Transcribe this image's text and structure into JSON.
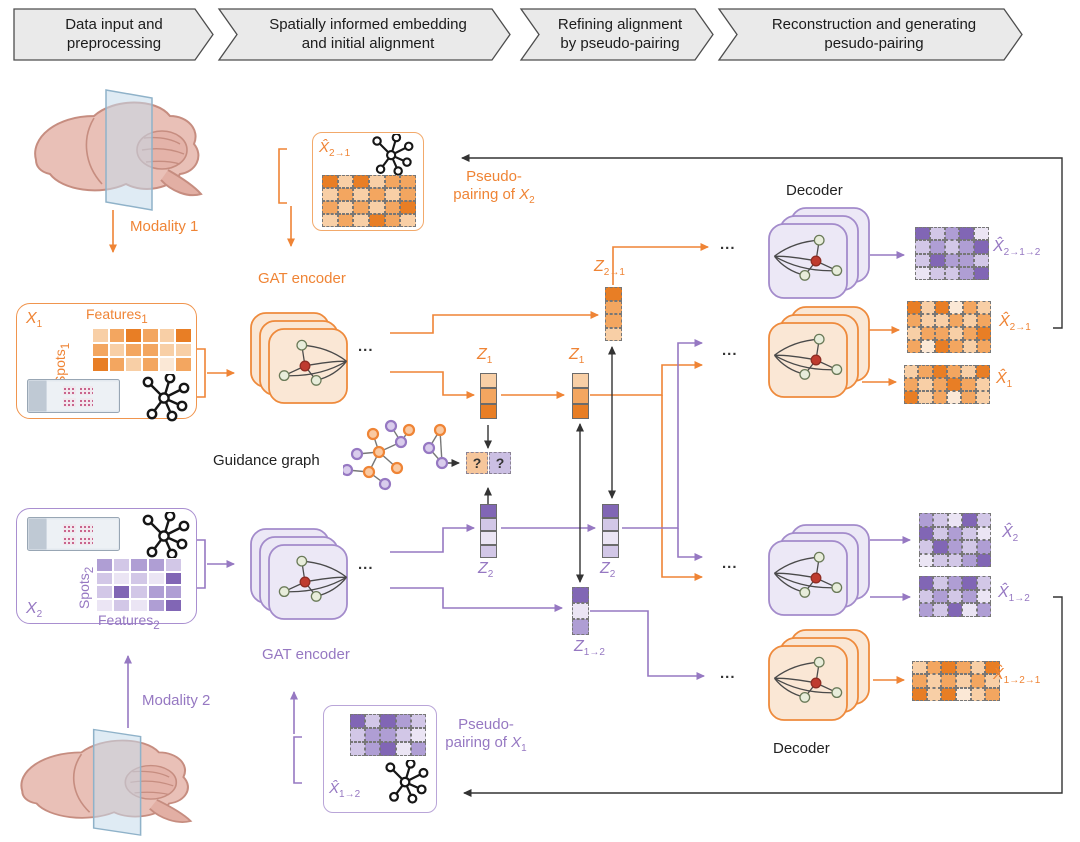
{
  "colors": {
    "orange": "#EF8435",
    "purple": "#9678C2",
    "black": "#222222",
    "banner_fill": "#EAEAEA",
    "banner_stroke": "#4D4D4D",
    "orange_levels": [
      "#E87E25",
      "#F3A660",
      "#F8CFA6",
      "#FBE8D6"
    ],
    "purple_levels": [
      "#8166B5",
      "#AF9ED4",
      "#D2C7E7",
      "#EBE5F4"
    ]
  },
  "banner": {
    "stages": [
      {
        "line1": "Data input and",
        "line2": "preprocessing"
      },
      {
        "line1": "Spatially informed embedding",
        "line2": "and initial alignment"
      },
      {
        "line1": "Refining alignment",
        "line2": "by pseudo-pairing"
      },
      {
        "line1": "Reconstruction and generating",
        "line2": "pesudo-pairing"
      }
    ]
  },
  "left": {
    "modality1": "Modality 1",
    "modality2": "Modality 2",
    "x1_box": {
      "var": "X",
      "sub": "1",
      "rows": "Spots",
      "rows_sub": "1",
      "cols": "Features",
      "cols_sub": "1"
    },
    "x2_box": {
      "var": "X",
      "sub": "2",
      "rows": "Spots",
      "rows_sub": "2",
      "cols": "Features",
      "cols_sub": "2"
    }
  },
  "encoders": {
    "top": "GAT encoder",
    "bottom": "GAT encoder"
  },
  "decoders": {
    "top": "Decoder",
    "bottom": "Decoder"
  },
  "pseudo_top": {
    "l1": "Pseudo-",
    "l2": "pairing of ",
    "var": "X",
    "sub": "2",
    "mat_var": "X̂",
    "mat_sub": "2→1"
  },
  "pseudo_bottom": {
    "l1": "Pseudo-",
    "l2": "pairing of ",
    "var": "X",
    "sub": "1",
    "mat_var": "X̂",
    "mat_sub": "1→2"
  },
  "guidance": {
    "label": "Guidance graph",
    "q1": "?",
    "q2": "?"
  },
  "latents": {
    "z1a": {
      "base": "Z",
      "sub": "1"
    },
    "z1b": {
      "base": "Z",
      "sub": "1"
    },
    "z21": {
      "base": "Z",
      "sub": "2→1"
    },
    "z2a": {
      "base": "Z",
      "sub": "2"
    },
    "z2b": {
      "base": "Z",
      "sub": "2"
    },
    "z12": {
      "base": "Z",
      "sub": "1→2"
    }
  },
  "outputs": {
    "o1": {
      "base": "X̂",
      "sub": "2→1→2"
    },
    "o2": {
      "base": "X̂",
      "sub": "2→1"
    },
    "o3": {
      "base": "X̂",
      "sub": "1"
    },
    "o4": {
      "base": "X̂",
      "sub": "2"
    },
    "o5": {
      "base": "X̂",
      "sub": "1→2"
    },
    "o6": {
      "base": "X̂",
      "sub": "1→2→1"
    }
  },
  "dots": "...",
  "matrices": {
    "m_x1": {
      "rows": 3,
      "cols": 6,
      "palette": "orange_levels",
      "border": "white",
      "cells": [
        [
          2,
          1,
          0,
          1,
          2,
          0
        ],
        [
          1,
          2,
          1,
          1,
          2,
          2
        ],
        [
          0,
          1,
          2,
          1,
          3,
          1
        ]
      ]
    },
    "m_xhat21_top": {
      "rows": 4,
      "cols": 6,
      "palette": "orange_levels",
      "border": "dashed",
      "cells": [
        [
          0,
          2,
          0,
          2,
          1,
          1
        ],
        [
          2,
          1,
          2,
          1,
          2,
          1
        ],
        [
          1,
          2,
          1,
          2,
          1,
          0
        ],
        [
          2,
          1,
          2,
          0,
          1,
          2
        ]
      ]
    },
    "m_x2": {
      "rows": 4,
      "cols": 5,
      "palette": "purple_levels",
      "border": "white",
      "cells": [
        [
          1,
          2,
          1,
          1,
          2
        ],
        [
          2,
          3,
          2,
          3,
          0
        ],
        [
          2,
          0,
          2,
          1,
          1
        ],
        [
          3,
          2,
          3,
          1,
          0
        ]
      ]
    },
    "m_xhat12_bot": {
      "rows": 3,
      "cols": 5,
      "palette": "purple_levels",
      "border": "dashed",
      "cells": [
        [
          0,
          2,
          0,
          1,
          2
        ],
        [
          2,
          1,
          1,
          2,
          3
        ],
        [
          2,
          1,
          0,
          3,
          1
        ]
      ]
    },
    "m_out1": {
      "rows": 4,
      "cols": 5,
      "palette": "purple_levels",
      "border": "dashed",
      "cells": [
        [
          0,
          2,
          1,
          0,
          3
        ],
        [
          2,
          1,
          2,
          1,
          0
        ],
        [
          2,
          0,
          1,
          1,
          2
        ],
        [
          3,
          2,
          2,
          1,
          0
        ]
      ]
    },
    "m_out2": {
      "rows": 4,
      "cols": 6,
      "palette": "orange_levels",
      "border": "dashed",
      "cells": [
        [
          0,
          2,
          0,
          3,
          1,
          2
        ],
        [
          1,
          2,
          2,
          1,
          2,
          1
        ],
        [
          2,
          1,
          1,
          2,
          1,
          0
        ],
        [
          1,
          3,
          0,
          1,
          2,
          1
        ]
      ]
    },
    "m_out3": {
      "rows": 3,
      "cols": 6,
      "palette": "orange_levels",
      "border": "dashed",
      "cells": [
        [
          2,
          1,
          0,
          1,
          2,
          0
        ],
        [
          1,
          2,
          1,
          0,
          1,
          2
        ],
        [
          0,
          2,
          1,
          3,
          1,
          2
        ]
      ]
    },
    "m_out4": {
      "rows": 4,
      "cols": 5,
      "palette": "purple_levels",
      "border": "dashed",
      "cells": [
        [
          1,
          2,
          3,
          0,
          2
        ],
        [
          0,
          2,
          1,
          2,
          3
        ],
        [
          2,
          0,
          1,
          2,
          1
        ],
        [
          3,
          2,
          2,
          1,
          0
        ]
      ]
    },
    "m_out5": {
      "rows": 3,
      "cols": 5,
      "palette": "purple_levels",
      "border": "dashed",
      "cells": [
        [
          0,
          2,
          1,
          0,
          2
        ],
        [
          2,
          1,
          2,
          1,
          3
        ],
        [
          1,
          2,
          0,
          3,
          1
        ]
      ]
    },
    "m_out6": {
      "rows": 3,
      "cols": 6,
      "palette": "orange_levels",
      "border": "dashed",
      "cells": [
        [
          2,
          1,
          0,
          1,
          2,
          0
        ],
        [
          1,
          2,
          1,
          2,
          1,
          2
        ],
        [
          0,
          2,
          0,
          3,
          2,
          1
        ]
      ]
    },
    "v_z1a": {
      "rows": 3,
      "cols": 1,
      "palette": "orange_levels",
      "border": "dark",
      "cells": [
        [
          2
        ],
        [
          1
        ],
        [
          0
        ]
      ]
    },
    "v_z1b": {
      "rows": 3,
      "cols": 1,
      "palette": "orange_levels",
      "border": "dark",
      "cells": [
        [
          2
        ],
        [
          1
        ],
        [
          0
        ]
      ]
    },
    "v_z21": {
      "rows": 4,
      "cols": 1,
      "palette": "orange_levels",
      "border": "dashed",
      "cells": [
        [
          0
        ],
        [
          1
        ],
        [
          1
        ],
        [
          2
        ]
      ]
    },
    "v_z2a": {
      "rows": 4,
      "cols": 1,
      "palette": "purple_levels",
      "border": "dark",
      "cells": [
        [
          0
        ],
        [
          2
        ],
        [
          3
        ],
        [
          2
        ]
      ]
    },
    "v_z2b": {
      "rows": 4,
      "cols": 1,
      "palette": "purple_levels",
      "border": "dark",
      "cells": [
        [
          0
        ],
        [
          2
        ],
        [
          3
        ],
        [
          2
        ]
      ]
    },
    "v_z12": {
      "rows": 3,
      "cols": 1,
      "palette": "purple_levels",
      "border": "dashed",
      "cells": [
        [
          0
        ],
        [
          3
        ],
        [
          1
        ]
      ]
    }
  }
}
